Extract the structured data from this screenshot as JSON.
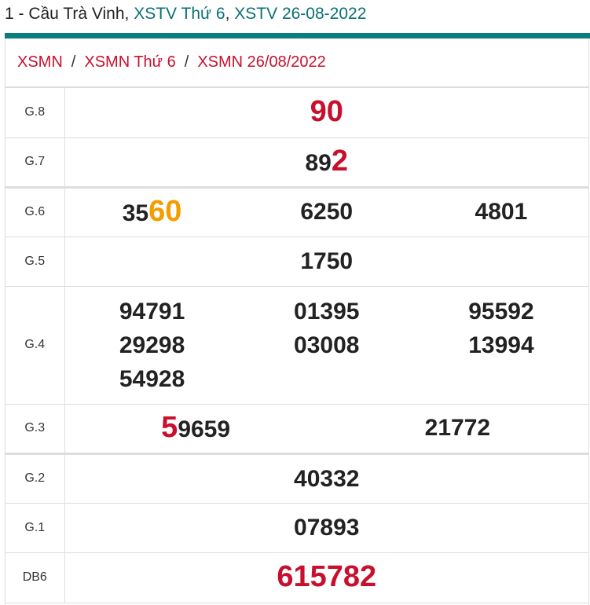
{
  "title": {
    "prefix": "1 - Cầu Trà Vinh, ",
    "link1": "XSTV Thứ 6",
    "sep": ", ",
    "link2": "XSTV 26-08-2022"
  },
  "breadcrumb": [
    "XSMN",
    "XSMN Thứ 6",
    "XSMN 26/08/2022"
  ],
  "breadcrumb_sep": "/",
  "colors": {
    "accent": "#0a7d7f",
    "red": "#c8102e",
    "orange": "#f59c00"
  },
  "prizes": [
    {
      "label": "G.8",
      "cols": [
        [
          {
            "t": "90",
            "c": "red big"
          }
        ]
      ]
    },
    {
      "label": "G.7",
      "cols": [
        [
          {
            "t": "89"
          },
          {
            "t": "2",
            "c": "red big"
          }
        ]
      ]
    },
    {
      "label": "G.6",
      "cols": [
        [
          {
            "t": "35"
          },
          {
            "t": "60",
            "c": "org big"
          }
        ],
        [
          {
            "t": "6250"
          }
        ],
        [
          {
            "t": "4801"
          }
        ]
      ]
    },
    {
      "label": "G.5",
      "cols": [
        [
          {
            "t": "1750"
          }
        ]
      ]
    },
    {
      "label": "G.4",
      "cols": [
        [
          {
            "t": "94791"
          },
          {
            "t": "29298",
            "br": 1
          },
          {
            "t": "54928",
            "br": 1
          }
        ],
        [
          {
            "t": "01395"
          },
          {
            "t": "03008",
            "br": 1
          }
        ],
        [
          {
            "t": "95592"
          },
          {
            "t": "13994",
            "br": 1
          }
        ]
      ]
    },
    {
      "label": "G.3",
      "cols": [
        [
          {
            "t": "5",
            "c": "red big"
          },
          {
            "t": "9659"
          }
        ],
        [
          {
            "t": "21772"
          }
        ]
      ]
    },
    {
      "label": "G.2",
      "cols": [
        [
          {
            "t": "40332"
          }
        ]
      ]
    },
    {
      "label": "G.1",
      "cols": [
        [
          {
            "t": "07893"
          }
        ]
      ]
    },
    {
      "label": "DB6",
      "cols": [
        [
          {
            "t": "615782",
            "c": "red big"
          }
        ]
      ]
    }
  ]
}
